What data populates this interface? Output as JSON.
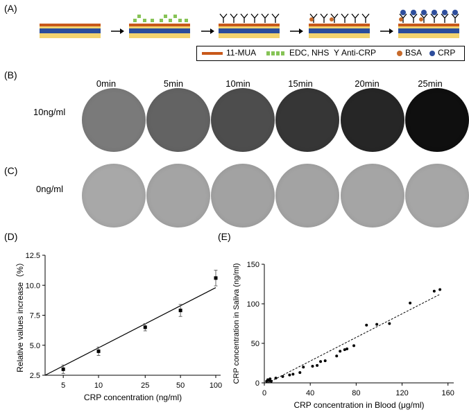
{
  "panel_labels": {
    "a": "(A)",
    "b": "(B)",
    "c": "(C)",
    "d": "(D)",
    "e": "(E)"
  },
  "legend": {
    "mua": "11-MUA",
    "edc": "EDC, NHS",
    "anti_symbol": "Y",
    "anti": "Anti-CRP",
    "bsa": "BSA",
    "crp": "CRP"
  },
  "colors": {
    "mua": "#c8581a",
    "edc": "#86c356",
    "bsa": "#c76a2b",
    "crp": "#2e4e9c",
    "chip_yellow": "#f2d36f",
    "chip_blue": "#2a4d9c"
  },
  "times": [
    "0min",
    "5min",
    "10min",
    "15min",
    "20min",
    "25min"
  ],
  "rows": {
    "b": {
      "label": "10ng/ml",
      "tones": [
        "#7a7a7a",
        "#636363",
        "#4d4d4d",
        "#363636",
        "#262626",
        "#0f0f0f"
      ]
    },
    "c": {
      "label": "0ng/ml",
      "tones": [
        "#a8a8a8",
        "#a4a4a4",
        "#a2a2a2",
        "#a3a3a3",
        "#a5a5a5",
        "#a6a6a6"
      ]
    }
  },
  "chart_data": [
    {
      "type": "scatter",
      "title": "",
      "xlabel": "CRP concentration (ng/ml)",
      "ylabel": "Relative values increase（%）",
      "xscale": "log",
      "xticks": [
        "5",
        "10",
        "25",
        "50",
        "100"
      ],
      "yticks": [
        "2.5",
        "5.0",
        "7.5",
        "10.0",
        "12.5"
      ],
      "xlim": [
        3.5,
        110
      ],
      "ylim": [
        2.5,
        12.5
      ],
      "points": [
        {
          "x": 5,
          "y": 3.0,
          "err": 0.35
        },
        {
          "x": 10,
          "y": 4.5,
          "err": 0.35
        },
        {
          "x": 25,
          "y": 6.5,
          "err": 0.3
        },
        {
          "x": 50,
          "y": 7.9,
          "err": 0.5
        },
        {
          "x": 100,
          "y": 10.6,
          "err": 0.65
        }
      ],
      "fit_line": {
        "x": [
          3.5,
          100
        ],
        "y": [
          2.5,
          9.8
        ],
        "style": "solid"
      }
    },
    {
      "type": "scatter",
      "title": "",
      "xlabel": "CRP concentration in Blood (μg/ml)",
      "ylabel": "CRP concentration in Saliva (ng/ml)",
      "xticks": [
        "0",
        "40",
        "80",
        "120",
        "160"
      ],
      "yticks": [
        "0",
        "50",
        "100",
        "150"
      ],
      "xlim": [
        0,
        165
      ],
      "ylim": [
        0,
        150
      ],
      "points": [
        {
          "x": 2,
          "y": 2
        },
        {
          "x": 3,
          "y": 4
        },
        {
          "x": 4,
          "y": 3
        },
        {
          "x": 5,
          "y": 5
        },
        {
          "x": 6,
          "y": 2
        },
        {
          "x": 10,
          "y": 6
        },
        {
          "x": 16,
          "y": 8
        },
        {
          "x": 22,
          "y": 10
        },
        {
          "x": 25,
          "y": 11
        },
        {
          "x": 31,
          "y": 13
        },
        {
          "x": 34,
          "y": 20
        },
        {
          "x": 42,
          "y": 21
        },
        {
          "x": 46,
          "y": 22
        },
        {
          "x": 49,
          "y": 27
        },
        {
          "x": 53,
          "y": 28
        },
        {
          "x": 63,
          "y": 34
        },
        {
          "x": 66,
          "y": 40
        },
        {
          "x": 70,
          "y": 42
        },
        {
          "x": 72,
          "y": 43
        },
        {
          "x": 78,
          "y": 47
        },
        {
          "x": 89,
          "y": 73
        },
        {
          "x": 98,
          "y": 74
        },
        {
          "x": 109,
          "y": 75
        },
        {
          "x": 127,
          "y": 101
        },
        {
          "x": 148,
          "y": 116
        },
        {
          "x": 153,
          "y": 118
        }
      ],
      "fit_line": {
        "x": [
          3,
          153
        ],
        "y": [
          0,
          112
        ],
        "style": "dashed"
      }
    }
  ]
}
